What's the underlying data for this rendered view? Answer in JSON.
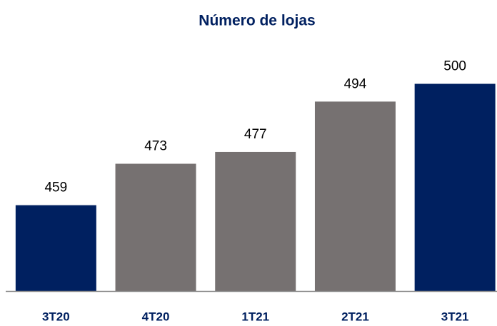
{
  "chart_data": {
    "type": "bar",
    "title": "Número de lojas",
    "categories": [
      "3T20",
      "4T20",
      "1T21",
      "2T21",
      "3T21"
    ],
    "values": [
      459,
      473,
      477,
      494,
      500
    ],
    "colors": [
      "#002060",
      "#767171",
      "#767171",
      "#767171",
      "#002060"
    ],
    "ylim": [
      430,
      510
    ]
  }
}
